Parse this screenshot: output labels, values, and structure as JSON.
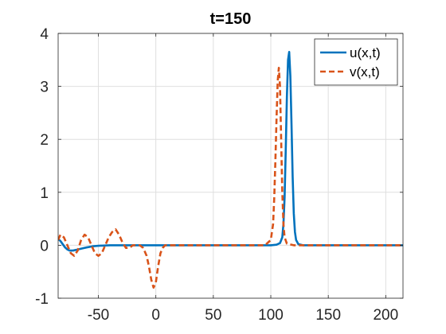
{
  "chart_data": {
    "type": "line",
    "title": "t=150",
    "xlabel": "",
    "ylabel": "",
    "xlim": [
      -85,
      215
    ],
    "ylim": [
      -1,
      4
    ],
    "xticks": [
      -50,
      0,
      50,
      100,
      150,
      200
    ],
    "yticks": [
      -1,
      0,
      1,
      2,
      3,
      4
    ],
    "xtick_labels": [
      "-50",
      "0",
      "50",
      "100",
      "150",
      "200"
    ],
    "ytick_labels": [
      "-1",
      "0",
      "1",
      "2",
      "3",
      "4"
    ],
    "grid": true,
    "legend_position": "top-right",
    "series": [
      {
        "name": "u(x,t)",
        "color": "#0072BD",
        "style": "solid",
        "x": [
          -85,
          -83,
          -81,
          -79,
          -77,
          -75,
          -72,
          -68,
          -64,
          -60,
          -55,
          -50,
          -40,
          -30,
          -20,
          -10,
          0,
          20,
          50,
          80,
          100,
          105,
          108,
          110,
          111,
          112,
          113,
          114,
          115,
          116,
          117,
          118,
          119,
          120,
          121,
          122,
          124,
          128,
          140,
          160,
          190,
          215
        ],
        "y": [
          0.12,
          0.08,
          0.02,
          -0.04,
          -0.08,
          -0.1,
          -0.1,
          -0.08,
          -0.06,
          -0.04,
          -0.02,
          -0.01,
          0.0,
          0.0,
          0.0,
          0.0,
          0.0,
          0.0,
          0.0,
          0.0,
          0.0,
          0.01,
          0.04,
          0.15,
          0.4,
          0.9,
          1.8,
          2.8,
          3.5,
          3.65,
          3.2,
          2.3,
          1.3,
          0.6,
          0.25,
          0.1,
          0.02,
          0.0,
          0.0,
          0.0,
          0.0,
          0.0
        ]
      },
      {
        "name": "v(x,t)",
        "color": "#D95319",
        "style": "dashed",
        "x": [
          -85,
          -83,
          -80,
          -77,
          -74,
          -71,
          -68,
          -65,
          -62,
          -59,
          -56,
          -53,
          -50,
          -47,
          -44,
          -41,
          -38,
          -35,
          -32,
          -29,
          -26,
          -23,
          -20,
          -17,
          -14,
          -11,
          -8,
          -6,
          -4,
          -2,
          0,
          2,
          4,
          6,
          8,
          12,
          20,
          50,
          80,
          95,
          100,
          102,
          103,
          104,
          105,
          106,
          107,
          108,
          109,
          110,
          111,
          112,
          114,
          120,
          150,
          215
        ],
        "y": [
          0.1,
          0.2,
          0.15,
          0.0,
          -0.15,
          -0.2,
          -0.1,
          0.1,
          0.2,
          0.15,
          0.0,
          -0.15,
          -0.2,
          -0.15,
          0.0,
          0.15,
          0.25,
          0.3,
          0.2,
          0.05,
          -0.05,
          -0.05,
          0.0,
          0.0,
          0.0,
          -0.05,
          -0.2,
          -0.4,
          -0.65,
          -0.8,
          -0.7,
          -0.4,
          -0.15,
          -0.05,
          0.0,
          0.0,
          0.0,
          0.0,
          0.0,
          0.0,
          0.1,
          0.4,
          0.9,
          1.6,
          2.4,
          3.1,
          3.35,
          3.0,
          2.0,
          1.0,
          0.4,
          0.15,
          0.03,
          0.0,
          0.0,
          0.0
        ]
      }
    ]
  }
}
